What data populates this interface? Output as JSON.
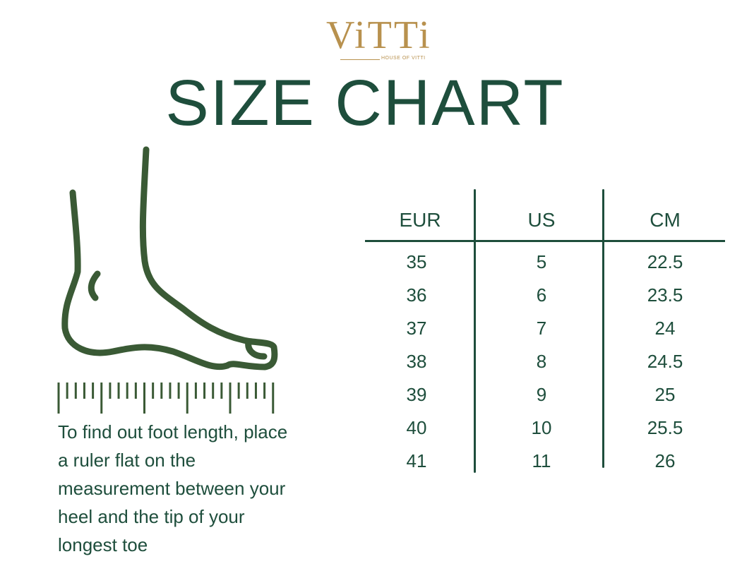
{
  "brand": {
    "logo_text": "ViTTi",
    "logo_subtitle": "HOUSE OF VITTI",
    "logo_color": "#b8914e"
  },
  "title": "SIZE CHART",
  "colors": {
    "primary": "#1e4e3c",
    "illustration": "#3a5a35"
  },
  "illustration": {
    "icons": [
      "foot-icon",
      "ruler-icon"
    ]
  },
  "instructions": "To find out foot length, place a ruler flat on the measurement between your heel and the tip of your longest toe",
  "table": {
    "headers": [
      "EUR",
      "US",
      "CM"
    ],
    "rows": [
      [
        "35",
        "5",
        "22.5"
      ],
      [
        "36",
        "6",
        "23.5"
      ],
      [
        "37",
        "7",
        "24"
      ],
      [
        "38",
        "8",
        "24.5"
      ],
      [
        "39",
        "9",
        "25"
      ],
      [
        "40",
        "10",
        "25.5"
      ],
      [
        "41",
        "11",
        "26"
      ]
    ]
  }
}
